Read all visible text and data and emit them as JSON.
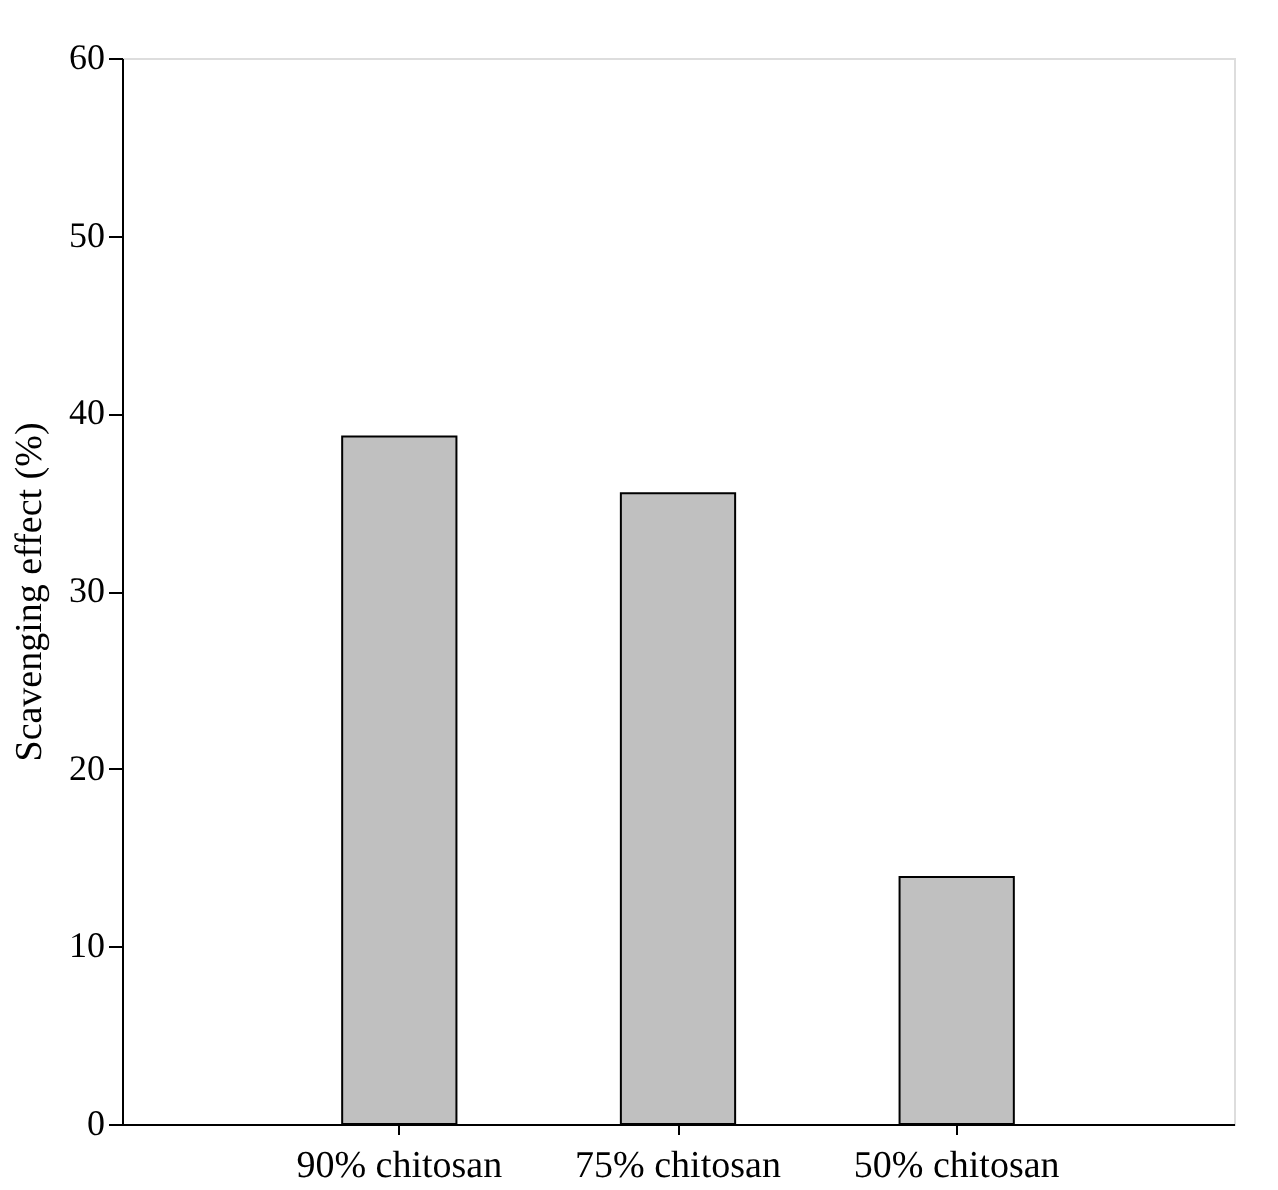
{
  "chart_data": {
    "type": "bar",
    "ylabel": "Scavenging effect (%)",
    "categories": [
      "90% chitosan",
      "75% chitosan",
      "50% chitosan"
    ],
    "values": [
      38.7,
      35.5,
      13.9
    ],
    "color": "#c0c0c0",
    "ylim": [
      0,
      60
    ],
    "yticks": [
      0,
      10,
      20,
      30,
      40,
      50,
      60
    ],
    "grid": false
  }
}
